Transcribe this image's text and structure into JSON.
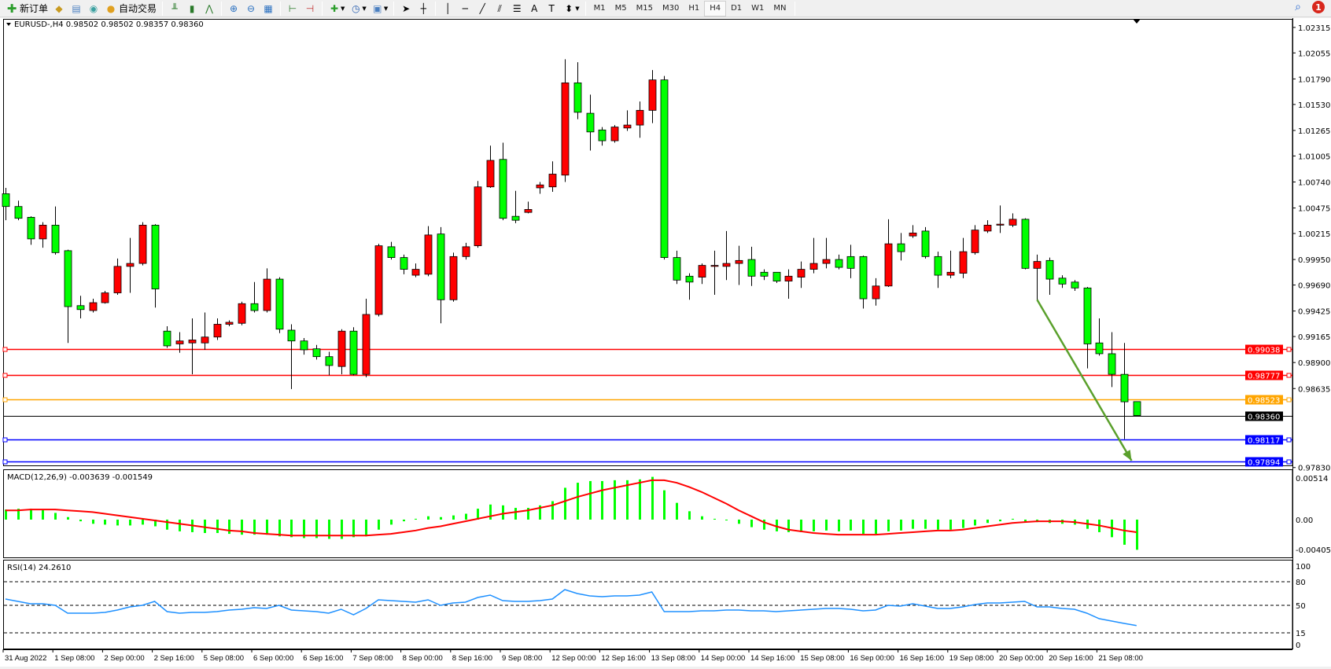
{
  "toolbar": {
    "new_order_label": "新订单",
    "auto_trading_label": "自动交易",
    "timeframes": [
      "M1",
      "M5",
      "M15",
      "M30",
      "H1",
      "H4",
      "D1",
      "W1",
      "MN"
    ],
    "active_timeframe": "H4",
    "notification_count": "1",
    "icons": [
      "new-order-icon",
      "history-icon",
      "terminal-icon",
      "signals-icon",
      "auto-trading-icon",
      "bar-chart-icon",
      "candlestick-icon",
      "line-chart-icon",
      "zoom-in-icon",
      "zoom-out-icon",
      "tile-windows-icon",
      "chart-shift-icon",
      "autoscroll-icon",
      "indicators-icon",
      "periods-icon",
      "templates-icon",
      "cursor-icon",
      "crosshair-icon",
      "vertical-line-icon",
      "horizontal-line-icon",
      "trendline-icon",
      "equidistant-channel-icon",
      "fibonacci-icon",
      "text-icon",
      "text-label-icon",
      "arrows-icon"
    ]
  },
  "chart": {
    "header": "EURUSD-,H4  0.98502 0.98502 0.98357 0.98360",
    "macd_label": "MACD(12,26,9) -0.003639 -0.001549",
    "rsi_label": "RSI(14) 24.2610",
    "colors": {
      "up_candle": "#ff0000",
      "down_candle": "#00ff00",
      "macd_hist": "#00ff00",
      "signal": "#ff0000",
      "rsi": "#1e90ff",
      "arrow": "#5aa02c"
    }
  },
  "chart_data": [
    {
      "type": "candlestick",
      "symbol": "EURUSD-",
      "timeframe": "H4",
      "ylim": [
        0.97844,
        1.02402
      ],
      "price_ticks": [
        "1.02315",
        "1.02055",
        "1.01790",
        "1.01530",
        "1.01265",
        "1.01005",
        "1.00740",
        "1.00475",
        "1.00215",
        "0.99950",
        "0.99690",
        "0.99425",
        "0.99165",
        "0.98900",
        "0.98635",
        "0.97830"
      ],
      "time_ticks": [
        "31 Aug 2022",
        "1 Sep 08:00",
        "2 Sep 00:00",
        "2 Sep 16:00",
        "5 Sep 08:00",
        "6 Sep 00:00",
        "6 Sep 16:00",
        "7 Sep 08:00",
        "8 Sep 00:00",
        "8 Sep 16:00",
        "9 Sep 08:00",
        "12 Sep 00:00",
        "12 Sep 16:00",
        "13 Sep 08:00",
        "14 Sep 00:00",
        "14 Sep 16:00",
        "15 Sep 08:00",
        "16 Sep 00:00",
        "16 Sep 16:00",
        "19 Sep 08:00",
        "20 Sep 00:00",
        "20 Sep 16:00",
        "21 Sep 08:00"
      ],
      "time_tick_every_bars": 4,
      "ohlc": [
        [
          1.0062,
          1.0068,
          1.0035,
          1.0049
        ],
        [
          1.0049,
          1.0055,
          1.0035,
          1.0037
        ],
        [
          1.0038,
          1.0039,
          1.001,
          1.0016
        ],
        [
          1.0016,
          1.0033,
          1.0007,
          1.003
        ],
        [
          1.003,
          1.0049,
          1.0,
          1.0002
        ],
        [
          1.0004,
          1.0005,
          0.991,
          0.9947
        ],
        [
          0.9948,
          0.9958,
          0.9935,
          0.9944
        ],
        [
          0.9943,
          0.9955,
          0.9941,
          0.9951
        ],
        [
          0.9951,
          0.9963,
          0.995,
          0.9961
        ],
        [
          0.9961,
          0.9996,
          0.9959,
          0.9988
        ],
        [
          0.9988,
          1.0017,
          0.9961,
          0.9991
        ],
        [
          0.9991,
          1.0033,
          0.9989,
          1.003
        ],
        [
          1.003,
          1.0031,
          0.9946,
          0.9965
        ],
        [
          0.9922,
          0.9927,
          0.9905,
          0.9907
        ],
        [
          0.9909,
          0.9921,
          0.99,
          0.9912
        ],
        [
          0.991,
          0.9935,
          0.9878,
          0.9913
        ],
        [
          0.991,
          0.9941,
          0.9903,
          0.9916
        ],
        [
          0.9916,
          0.9935,
          0.9913,
          0.9929
        ],
        [
          0.9929,
          0.9933,
          0.9927,
          0.9931
        ],
        [
          0.993,
          0.9952,
          0.9928,
          0.995
        ],
        [
          0.995,
          0.9972,
          0.9941,
          0.9943
        ],
        [
          0.9943,
          0.9986,
          0.9941,
          0.9975
        ],
        [
          0.9975,
          0.9977,
          0.992,
          0.9924
        ],
        [
          0.9923,
          0.9929,
          0.9863,
          0.9912
        ],
        [
          0.9912,
          0.9915,
          0.9898,
          0.9903
        ],
        [
          0.9904,
          0.9908,
          0.9893,
          0.9896
        ],
        [
          0.9896,
          0.9901,
          0.9877,
          0.9887
        ],
        [
          0.9886,
          0.9924,
          0.9878,
          0.9922
        ],
        [
          0.9922,
          0.9926,
          0.9877,
          0.9878
        ],
        [
          0.9878,
          0.9955,
          0.9875,
          0.9939
        ],
        [
          0.9939,
          1.0011,
          0.9937,
          1.0009
        ],
        [
          1.0008,
          1.0013,
          0.9995,
          0.9997
        ],
        [
          0.9997,
          1.0,
          0.998,
          0.9985
        ],
        [
          0.9979,
          0.9991,
          0.9977,
          0.9985
        ],
        [
          0.998,
          1.0029,
          0.9978,
          1.002
        ],
        [
          1.0021,
          1.0028,
          0.993,
          0.9954
        ],
        [
          0.9954,
          1.0002,
          0.9952,
          0.9998
        ],
        [
          0.9998,
          1.0012,
          0.9995,
          1.0008
        ],
        [
          1.0009,
          1.0075,
          1.0007,
          1.0069
        ],
        [
          1.0069,
          1.0111,
          1.0068,
          1.0096
        ],
        [
          1.0097,
          1.0114,
          1.0035,
          1.0037
        ],
        [
          1.0039,
          1.0065,
          1.0032,
          1.0035
        ],
        [
          1.0043,
          1.0054,
          1.0042,
          1.0046
        ],
        [
          1.0068,
          1.0074,
          1.0062,
          1.0071
        ],
        [
          1.0069,
          1.0095,
          1.0064,
          1.0082
        ],
        [
          1.0081,
          1.0199,
          1.0074,
          1.0175
        ],
        [
          1.0175,
          1.0196,
          1.0138,
          1.0145
        ],
        [
          1.0144,
          1.0163,
          1.0106,
          1.0125
        ],
        [
          1.0127,
          1.013,
          1.0111,
          1.0116
        ],
        [
          1.0116,
          1.0132,
          1.0114,
          1.013
        ],
        [
          1.0129,
          1.0147,
          1.0126,
          1.0132
        ],
        [
          1.0132,
          1.0156,
          1.0119,
          1.0147
        ],
        [
          1.0147,
          1.0188,
          1.0134,
          1.0178
        ],
        [
          1.0178,
          1.0182,
          0.9995,
          0.9997
        ],
        [
          0.9997,
          1.0004,
          0.997,
          0.9974
        ],
        [
          0.9978,
          0.9981,
          0.9954,
          0.9972
        ],
        [
          0.9977,
          0.9991,
          0.997,
          0.9989
        ],
        [
          0.9988,
          1.0004,
          0.9959,
          0.9989
        ],
        [
          0.9988,
          1.0024,
          0.9974,
          0.9991
        ],
        [
          0.9991,
          1.0009,
          0.9969,
          0.9994
        ],
        [
          0.9995,
          1.0008,
          0.9968,
          0.9978
        ],
        [
          0.9982,
          0.9985,
          0.9974,
          0.9978
        ],
        [
          0.9982,
          0.9982,
          0.9971,
          0.9973
        ],
        [
          0.9973,
          0.9985,
          0.9955,
          0.9978
        ],
        [
          0.9977,
          0.9993,
          0.9966,
          0.9985
        ],
        [
          0.9985,
          1.0017,
          0.9981,
          0.9991
        ],
        [
          0.9991,
          1.0017,
          0.9986,
          0.9995
        ],
        [
          0.9995,
          1.0,
          0.9985,
          0.9987
        ],
        [
          0.9998,
          1.001,
          0.9976,
          0.9986
        ],
        [
          0.9998,
          0.9999,
          0.9945,
          0.9955
        ],
        [
          0.9955,
          0.9976,
          0.9948,
          0.9968
        ],
        [
          0.9968,
          1.0036,
          0.9967,
          1.0011
        ],
        [
          1.0011,
          1.0022,
          0.9994,
          1.0003
        ],
        [
          1.0019,
          1.003,
          1.0017,
          1.0022
        ],
        [
          1.0024,
          1.0028,
          0.9996,
          0.9998
        ],
        [
          0.9998,
          1.0003,
          0.9966,
          0.9979
        ],
        [
          0.9979,
          1.0004,
          0.9976,
          0.9982
        ],
        [
          0.9981,
          1.0017,
          0.9976,
          1.0003
        ],
        [
          1.0002,
          1.003,
          1.0,
          1.0025
        ],
        [
          1.0024,
          1.0035,
          1.0022,
          1.003
        ],
        [
          1.003,
          1.005,
          1.0022,
          1.0031
        ],
        [
          1.003,
          1.0042,
          1.0028,
          1.0036
        ],
        [
          1.0036,
          1.0037,
          0.9985,
          0.9986
        ],
        [
          0.9986,
          1.0,
          0.9954,
          0.9993
        ],
        [
          0.9994,
          0.9997,
          0.9959,
          0.9975
        ],
        [
          0.9976,
          0.9979,
          0.9966,
          0.997
        ],
        [
          0.9972,
          0.9974,
          0.9963,
          0.9966
        ],
        [
          0.9966,
          0.9967,
          0.9884,
          0.9909
        ],
        [
          0.991,
          0.9935,
          0.9897,
          0.9899
        ],
        [
          0.9899,
          0.9921,
          0.9865,
          0.9878
        ],
        [
          0.9878,
          0.991,
          0.9812,
          0.985
        ],
        [
          0.98502,
          0.98502,
          0.98357,
          0.9836
        ]
      ],
      "hlines": [
        {
          "price": "0.99038",
          "color": "#ff0000"
        },
        {
          "price": "0.98777",
          "color": "#ff0000"
        },
        {
          "price": "0.98523",
          "color": "#ffa500"
        },
        {
          "price": "0.98360",
          "color": "#000000",
          "bid": true
        },
        {
          "price": "0.98117",
          "color": "#0000ff"
        },
        {
          "price": "0.97894",
          "color": "#0000ff"
        }
      ],
      "arrow": {
        "from": {
          "bar": 83,
          "price": 0.9954
        },
        "to": {
          "bar": 90.6,
          "price": 0.979
        },
        "color": "#5aa02c"
      }
    },
    {
      "type": "bar+line",
      "name": "MACD(12,26,9)",
      "ylim": [
        -0.0046,
        0.006
      ],
      "ticks": [
        "0.00514",
        "0.00",
        "-0.004057"
      ],
      "histogram": [
        0.0012,
        0.0013,
        0.0013,
        0.0012,
        0.0008,
        0.0003,
        -0.0002,
        -0.0005,
        -0.0006,
        -0.0007,
        -0.0007,
        -0.0006,
        -0.0008,
        -0.0012,
        -0.0014,
        -0.0015,
        -0.0016,
        -0.0016,
        -0.0017,
        -0.0018,
        -0.0018,
        -0.0018,
        -0.002,
        -0.0021,
        -0.0022,
        -0.0022,
        -0.0023,
        -0.0023,
        -0.0021,
        -0.002,
        -0.0012,
        -0.0006,
        -0.0002,
        0.0001,
        0.0004,
        0.0003,
        0.0005,
        0.0007,
        0.0013,
        0.0018,
        0.0017,
        0.0014,
        0.0014,
        0.0017,
        0.0022,
        0.0038,
        0.0044,
        0.0046,
        0.0046,
        0.0047,
        0.0047,
        0.0048,
        0.0051,
        0.0035,
        0.002,
        0.001,
        0.0004,
        0.0001,
        -0.0001,
        -0.0005,
        -0.0009,
        -0.0012,
        -0.0014,
        -0.0015,
        -0.0015,
        -0.0014,
        -0.0013,
        -0.0014,
        -0.0013,
        -0.0017,
        -0.0017,
        -0.0014,
        -0.0013,
        -0.0011,
        -0.0011,
        -0.0012,
        -0.0012,
        -0.001,
        -0.0007,
        -0.0004,
        -0.0002,
        0.0001,
        -0.0003,
        -0.0003,
        -0.0004,
        -0.0005,
        -0.0006,
        -0.0011,
        -0.0015,
        -0.0021,
        -0.003,
        -0.0036
      ],
      "signal": [
        0.0011,
        0.0011,
        0.0012,
        0.0012,
        0.0012,
        0.0011,
        0.001,
        0.0009,
        0.0007,
        0.0005,
        0.0003,
        0.0001,
        -0.0001,
        -0.0003,
        -0.0005,
        -0.0007,
        -0.0009,
        -0.0011,
        -0.0013,
        -0.0014,
        -0.0016,
        -0.0017,
        -0.0018,
        -0.0019,
        -0.0019,
        -0.0019,
        -0.0019,
        -0.0019,
        -0.0019,
        -0.0019,
        -0.0018,
        -0.0017,
        -0.0015,
        -0.0013,
        -0.001,
        -0.0008,
        -0.0005,
        -0.0002,
        0.0001,
        0.0004,
        0.0007,
        0.0009,
        0.0011,
        0.0014,
        0.0017,
        0.0022,
        0.0027,
        0.0031,
        0.0035,
        0.0038,
        0.0041,
        0.0044,
        0.0047,
        0.0047,
        0.0044,
        0.0039,
        0.0033,
        0.0026,
        0.0019,
        0.0011,
        0.0004,
        -0.0003,
        -0.0008,
        -0.0012,
        -0.0014,
        -0.0016,
        -0.0017,
        -0.0018,
        -0.0018,
        -0.0018,
        -0.0018,
        -0.0017,
        -0.0016,
        -0.0015,
        -0.0014,
        -0.0013,
        -0.0013,
        -0.0012,
        -0.001,
        -0.0008,
        -0.0006,
        -0.0004,
        -0.0003,
        -0.0002,
        -0.0002,
        -0.0002,
        -0.0003,
        -0.0005,
        -0.0007,
        -0.001,
        -0.0013,
        -0.0015
      ]
    },
    {
      "type": "line",
      "name": "RSI(14)",
      "ylim": [
        -6,
        108
      ],
      "ticks": [
        "100",
        "80",
        "50",
        "15",
        "0"
      ],
      "levels": [
        80,
        50,
        15
      ],
      "values": [
        58,
        55,
        52,
        52,
        50,
        40,
        40,
        40,
        41,
        44,
        48,
        50,
        55,
        42,
        40,
        41,
        41,
        42,
        44,
        45,
        47,
        46,
        50,
        44,
        43,
        42,
        40,
        45,
        38,
        46,
        57,
        56,
        55,
        54,
        57,
        50,
        53,
        54,
        60,
        63,
        56,
        55,
        55,
        56,
        58,
        70,
        65,
        62,
        61,
        62,
        62,
        63,
        67,
        42,
        42,
        42,
        43,
        43,
        44,
        44,
        43,
        43,
        42,
        43,
        44,
        45,
        46,
        46,
        45,
        43,
        44,
        50,
        49,
        52,
        49,
        46,
        46,
        48,
        51,
        53,
        53,
        54,
        55,
        48,
        48,
        46,
        45,
        40,
        33,
        30,
        27,
        24.26
      ]
    }
  ]
}
